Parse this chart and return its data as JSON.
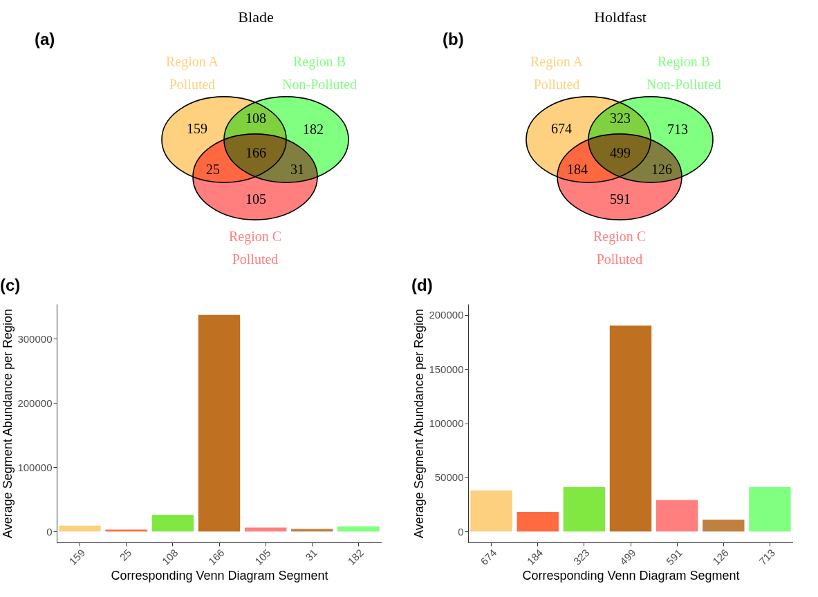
{
  "chart_data": [
    {
      "type": "other",
      "title": "Blade",
      "annotations": [
        "(a)",
        "159",
        "108",
        "182",
        "25",
        "166",
        "31",
        "105"
      ],
      "series": [
        {
          "name": "Region A\nPolluted",
          "color": "#fdd17f"
        },
        {
          "name": "Region B\nNon-Polluted",
          "color": "#80ff80"
        },
        {
          "name": "Region C\nPolluted",
          "color": "#ff7f7f"
        }
      ]
    },
    {
      "type": "other",
      "title": "Holdfast",
      "annotations": [
        "(b)",
        "674",
        "323",
        "713",
        "184",
        "499",
        "126",
        "591"
      ],
      "series": [
        {
          "name": "Region A\nPolluted",
          "color": "#fdd17f"
        },
        {
          "name": "Region B\nNon-Polluted",
          "color": "#80ff80"
        },
        {
          "name": "Region C\nPolluted",
          "color": "#ff7f7f"
        }
      ]
    },
    {
      "type": "bar",
      "annotations": [
        "(c)"
      ],
      "xlabel": "Corresponding Venn Diagram Segment",
      "ylabel": "Average Segment Abundance per Region",
      "categories": [
        "159",
        "25",
        "108",
        "166",
        "105",
        "31",
        "182"
      ],
      "values": [
        9000,
        3000,
        26000,
        337000,
        6000,
        4000,
        8000
      ],
      "colors": [
        "#fdd07f",
        "#ff6a40",
        "#80e840",
        "#bf7020",
        "#ff7f7f",
        "#c08040",
        "#80ff80"
      ],
      "ylim": [
        -17000,
        354000
      ],
      "yticks": [
        0,
        100000,
        200000,
        300000
      ],
      "grid": false
    },
    {
      "type": "bar",
      "annotations": [
        "(d)"
      ],
      "xlabel": "Corresponding Venn Diagram Segment",
      "ylabel": "Average Segment Abundance per Region",
      "categories": [
        "674",
        "184",
        "323",
        "499",
        "591",
        "126",
        "713"
      ],
      "values": [
        38000,
        18000,
        41000,
        190000,
        29000,
        11000,
        41000
      ],
      "colors": [
        "#fdd07f",
        "#ff6a40",
        "#80e840",
        "#bf7020",
        "#ff7f7f",
        "#c08040",
        "#80ff80"
      ],
      "ylim": [
        -10000,
        210000
      ],
      "yticks": [
        0,
        50000,
        100000,
        150000,
        200000
      ],
      "grid": false
    }
  ]
}
